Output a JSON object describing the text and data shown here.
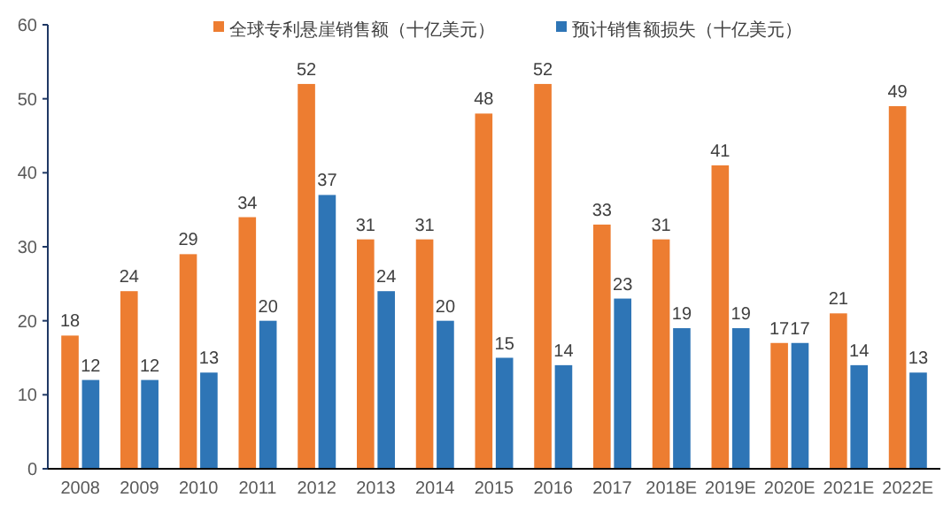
{
  "chart_data": {
    "type": "bar",
    "categories": [
      "2008",
      "2009",
      "2010",
      "2011",
      "2012",
      "2013",
      "2014",
      "2015",
      "2016",
      "2017",
      "2018E",
      "2019E",
      "2020E",
      "2021E",
      "2022E"
    ],
    "series": [
      {
        "name": "全球专利悬崖销售额（十亿美元）",
        "color": "#ed7d31",
        "values": [
          18,
          24,
          29,
          34,
          52,
          31,
          31,
          48,
          52,
          33,
          31,
          41,
          17,
          21,
          49
        ]
      },
      {
        "name": "预计销售额损失（十亿美元）",
        "color": "#2e75b6",
        "values": [
          12,
          12,
          13,
          20,
          37,
          24,
          20,
          15,
          14,
          23,
          19,
          19,
          17,
          14,
          13
        ]
      }
    ],
    "ylim": [
      0,
      60
    ],
    "yticks": [
      0,
      10,
      20,
      30,
      40,
      50,
      60
    ],
    "data_labels": true,
    "legend": "top",
    "grid": false
  }
}
